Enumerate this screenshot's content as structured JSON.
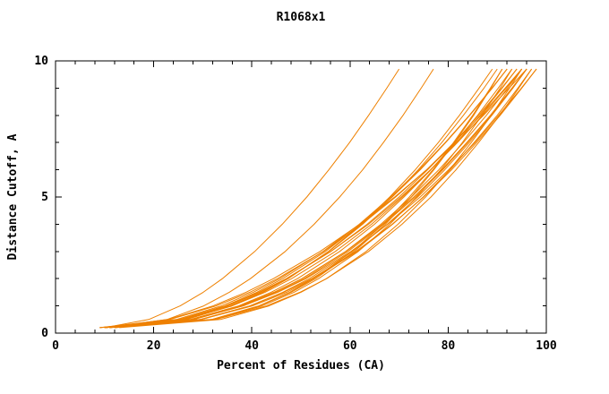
{
  "chart_data": {
    "type": "line",
    "title": "R1068x1",
    "xlabel": "Percent of Residues (CA)",
    "ylabel": "Distance Cutoff, A",
    "xlim": [
      0,
      100
    ],
    "ylim": [
      0,
      10
    ],
    "xticks": [
      0,
      20,
      40,
      60,
      80,
      100
    ],
    "yticks": [
      0,
      5,
      10
    ],
    "x_minor_step": 4,
    "y_minor_step": 1,
    "line_color": "#ee8000",
    "axis_color": "#000000",
    "grid": "off",
    "legend": "none",
    "y": [
      0.2,
      0.5,
      1,
      1.5,
      2,
      3,
      4,
      5,
      6,
      7,
      8,
      9,
      9.7
    ],
    "series": [
      [
        10,
        28,
        37.9,
        44.7,
        50.2,
        59.1,
        66.3,
        72.5,
        78.1,
        83.1,
        87.8,
        92.1,
        95
      ],
      [
        10,
        24.6,
        33.8,
        40.3,
        45.7,
        54.5,
        61.9,
        68.3,
        74.1,
        79.4,
        84.3,
        88.9,
        92
      ],
      [
        11,
        32.6,
        43,
        49.8,
        55.2,
        63.8,
        70.6,
        76.5,
        81.6,
        86.2,
        90.5,
        94.4,
        97
      ],
      [
        9,
        26.1,
        35.6,
        42.1,
        47.3,
        55.7,
        62.6,
        68.6,
        73.9,
        78.7,
        83.1,
        87.3,
        90
      ],
      [
        10,
        22.9,
        32.1,
        38.8,
        44.4,
        53.9,
        62,
        69.1,
        75.6,
        81.6,
        87.2,
        92.4,
        96
      ],
      [
        12,
        32.3,
        42.1,
        48.6,
        53.6,
        61.7,
        68.1,
        73.6,
        78.5,
        82.9,
        86.9,
        90.6,
        93
      ],
      [
        10,
        26.3,
        36,
        42.7,
        48.1,
        57,
        64.4,
        70.7,
        76.4,
        81.7,
        86.5,
        91,
        94
      ],
      [
        11,
        29.4,
        39.6,
        46.5,
        52.2,
        61.2,
        68.6,
        75,
        80.7,
        85.8,
        90.6,
        95,
        98
      ],
      [
        10,
        31.8,
        41.6,
        48,
        53,
        60.9,
        67.2,
        72.5,
        77.1,
        81.3,
        85.2,
        88.7,
        91
      ],
      [
        9,
        23.3,
        32.7,
        39.6,
        45.2,
        54.6,
        62.4,
        69.3,
        75.6,
        81.2,
        86.7,
        91.6,
        95
      ],
      [
        12,
        29.7,
        39.6,
        46.3,
        51.7,
        60.5,
        67.6,
        73.8,
        79.3,
        84.3,
        88.9,
        93.2,
        96
      ],
      [
        10,
        29.7,
        40.1,
        47.1,
        52.5,
        61.5,
        68.7,
        74.9,
        80.4,
        85.3,
        90,
        94.2,
        97
      ],
      [
        11,
        25.4,
        34.5,
        41,
        46.3,
        55,
        62.2,
        68.6,
        74.3,
        79.5,
        84.4,
        89,
        92
      ],
      [
        10,
        27.5,
        37.3,
        43.9,
        49.3,
        57.9,
        65,
        71,
        76.5,
        81.4,
        86,
        90.2,
        93
      ],
      [
        13,
        33.6,
        43.5,
        50,
        55.2,
        63.3,
        69.8,
        75.4,
        80.3,
        84.7,
        88.8,
        92.5,
        95
      ],
      [
        10,
        28.2,
        38.2,
        45.1,
        50.7,
        59.6,
        66.9,
        73.3,
        78.9,
        84,
        88.7,
        93.1,
        96
      ],
      [
        11,
        25.7,
        35.1,
        41.7,
        47.1,
        56.1,
        63.5,
        70,
        75.8,
        81.2,
        86.2,
        90.9,
        94
      ],
      [
        10,
        28,
        38.2,
        45.3,
        51,
        60.2,
        67.7,
        74.3,
        80.1,
        85.5,
        90.3,
        94.9,
        98
      ],
      [
        12,
        31.8,
        41.4,
        47.7,
        52.6,
        60.5,
        66.8,
        72.1,
        76.9,
        81.1,
        85,
        88.6,
        91
      ],
      [
        10,
        25.1,
        34.7,
        41.4,
        47,
        56.1,
        63.8,
        70.4,
        76.4,
        81.9,
        87,
        91.8,
        95
      ],
      [
        10,
        19,
        25.4,
        30.1,
        34,
        40.6,
        46.2,
        51.2,
        55.7,
        59.9,
        63.8,
        67.5,
        70
      ],
      [
        11,
        22.7,
        30.2,
        35.4,
        39.7,
        46.8,
        52.7,
        57.9,
        62.6,
        66.8,
        70.8,
        74.5,
        77
      ],
      [
        10,
        26.7,
        35.9,
        42.3,
        47.4,
        55.6,
        62.3,
        68.1,
        73.3,
        78,
        82.3,
        86.3,
        89
      ],
      [
        9,
        27.4,
        37.6,
        44.5,
        50.2,
        59.2,
        66.6,
        73,
        78.7,
        83.8,
        88.6,
        93,
        96
      ]
    ]
  }
}
